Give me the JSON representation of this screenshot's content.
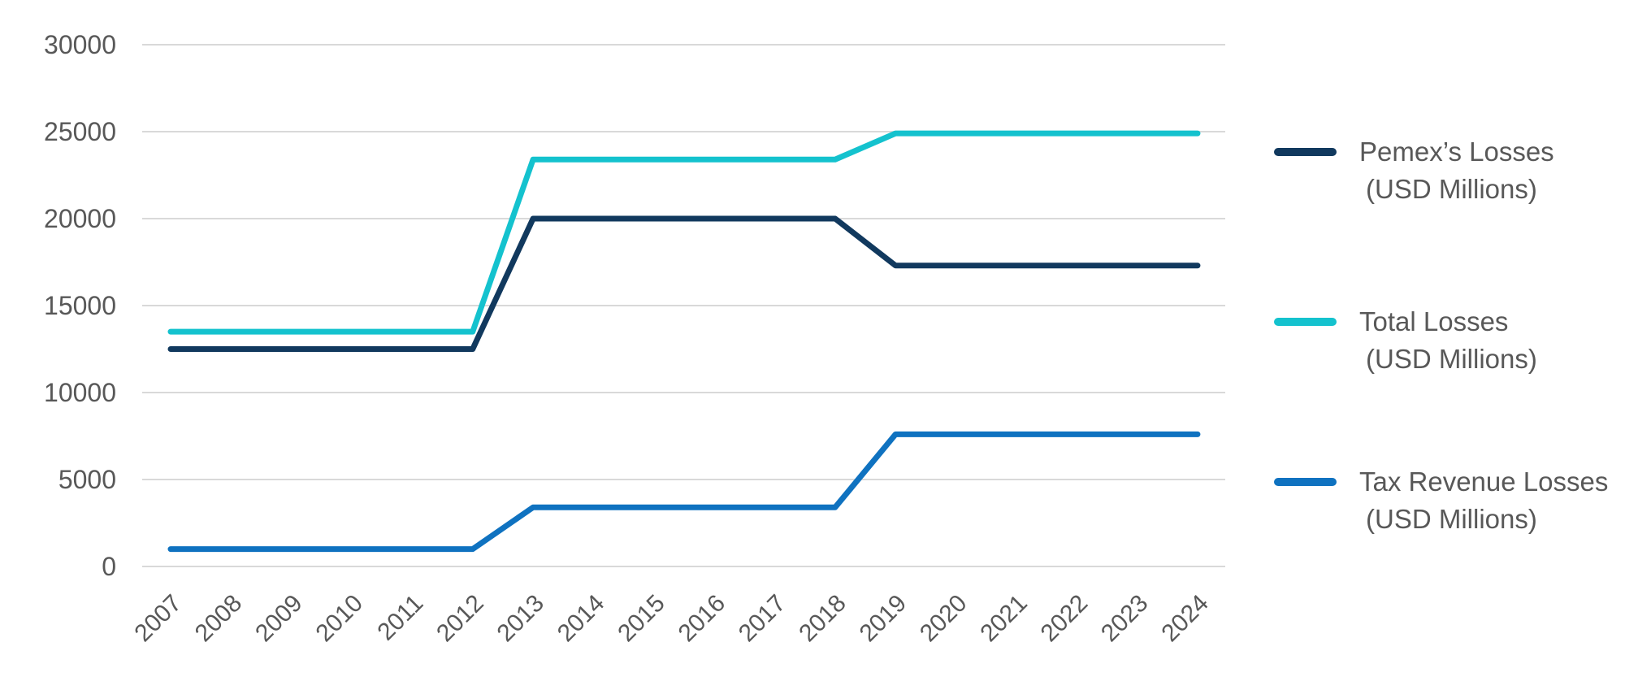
{
  "chart_data": {
    "type": "line",
    "title": "",
    "xlabel": "",
    "ylabel": "",
    "x": [
      2007,
      2008,
      2009,
      2010,
      2011,
      2012,
      2013,
      2014,
      2015,
      2016,
      2017,
      2018,
      2019,
      2020,
      2021,
      2022,
      2023,
      2024
    ],
    "ylim": [
      0,
      30000
    ],
    "yticks": [
      0,
      5000,
      10000,
      15000,
      20000,
      25000,
      30000
    ],
    "grid": true,
    "legend_position": "right",
    "axis_text_color": "#585858",
    "grid_color": "#d9d9d9",
    "series": [
      {
        "name": "Pemex’s Losses (USD Millions)",
        "legend_line1": "Pemex’s Losses",
        "legend_line2": "(USD Millions)",
        "color": "#11395e",
        "values": [
          12500,
          12500,
          12500,
          12500,
          12500,
          12500,
          20000,
          20000,
          20000,
          20000,
          20000,
          20000,
          17300,
          17300,
          17300,
          17300,
          17300,
          17300
        ]
      },
      {
        "name": "Total Losses (USD Millions)",
        "legend_line1": "Total Losses",
        "legend_line2": "(USD Millions)",
        "color": "#14c2ce",
        "values": [
          13500,
          13500,
          13500,
          13500,
          13500,
          13500,
          23400,
          23400,
          23400,
          23400,
          23400,
          23400,
          24900,
          24900,
          24900,
          24900,
          24900,
          24900
        ]
      },
      {
        "name": "Tax Revenue Losses (USD Millions)",
        "legend_line1": "Tax Revenue Losses",
        "legend_line2": "(USD Millions)",
        "color": "#0f72c0",
        "values": [
          1000,
          1000,
          1000,
          1000,
          1000,
          1000,
          3400,
          3400,
          3400,
          3400,
          3400,
          3400,
          7600,
          7600,
          7600,
          7600,
          7600,
          7600
        ]
      }
    ]
  }
}
